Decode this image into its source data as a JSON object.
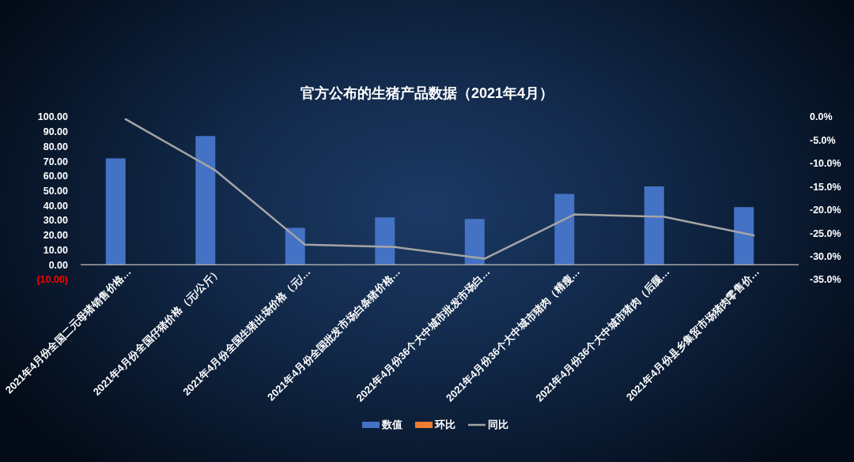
{
  "chart_data": {
    "type": "bar",
    "title": "官方公布的生猪产品数据（2021年4月）",
    "categories": [
      "2021年4月份全国二元母猪销售价格…",
      "2021年4月份全国仔猪价格（元/公斤）",
      "2021年4月份全国生猪出场价格（元/…",
      "2021年4月份全国批发市场白条猪价格…",
      "2021年4月份36个大中城市批发市场白…",
      "2021年4月份36个大中城市猪肉（精瘦…",
      "2021年4月份36个大中城市猪肉（后腿…",
      "2021年4月份县乡集贸市场猪肉零售价…"
    ],
    "series": [
      {
        "name": "数值",
        "color": "#4472c4",
        "values": [
          72,
          87,
          25,
          32,
          31,
          48,
          53,
          39
        ]
      },
      {
        "name": "环比",
        "color": "#ed7d31",
        "values": [
          null,
          null,
          null,
          null,
          null,
          null,
          null,
          null
        ]
      },
      {
        "name": "同比",
        "type": "line",
        "axis": "y2",
        "color": "#a5a5a5",
        "values": [
          -0.5,
          -11.5,
          -27.5,
          -28,
          -30.5,
          -21,
          -21.5,
          -25.5
        ]
      }
    ],
    "ylim": [
      -10,
      100
    ],
    "yticks": [
      {
        "value": 100,
        "label": "100.00"
      },
      {
        "value": 90,
        "label": "90.00"
      },
      {
        "value": 80,
        "label": "80.00"
      },
      {
        "value": 70,
        "label": "70.00"
      },
      {
        "value": 60,
        "label": "60.00"
      },
      {
        "value": 50,
        "label": "50.00"
      },
      {
        "value": 40,
        "label": "40.00"
      },
      {
        "value": 30,
        "label": "30.00"
      },
      {
        "value": 20,
        "label": "20.00"
      },
      {
        "value": 10,
        "label": "10.00"
      },
      {
        "value": 0,
        "label": "0.00"
      },
      {
        "value": -10,
        "label": "(10.00)"
      }
    ],
    "y2lim": [
      -35,
      0
    ],
    "y2ticks": [
      {
        "value": 0,
        "label": "0.0%"
      },
      {
        "value": -5,
        "label": "-5.0%"
      },
      {
        "value": -10,
        "label": "-10.0%"
      },
      {
        "value": -15,
        "label": "-15.0%"
      },
      {
        "value": -20,
        "label": "-20.0%"
      },
      {
        "value": -25,
        "label": "-25.0%"
      },
      {
        "value": -30,
        "label": "-30.0%"
      },
      {
        "value": -35,
        "label": "-35.0%"
      }
    ],
    "legend": "bottom",
    "marker": "none",
    "line_style": "solid"
  }
}
